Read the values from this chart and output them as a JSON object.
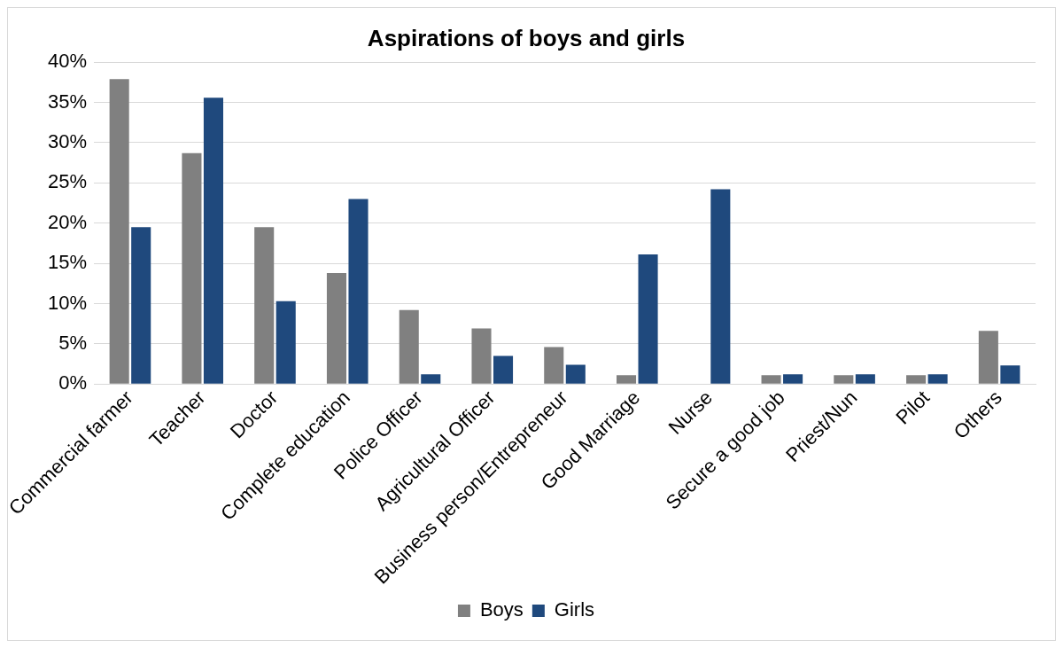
{
  "chart_data": {
    "type": "bar",
    "title": "Aspirations of boys and girls",
    "categories": [
      "Commercial farmer",
      "Teacher",
      "Doctor",
      "Complete education",
      "Police Officer",
      "Agricultural Officer",
      "Business person/Entrepreneur",
      "Good Marriage",
      "Nurse",
      "Secure a good job",
      "Priest/Nun",
      "Pilot",
      "Others"
    ],
    "series": [
      {
        "name": "Boys",
        "color": "#808080",
        "values": [
          37.9,
          28.7,
          19.5,
          13.8,
          9.2,
          6.9,
          4.6,
          1.1,
          0,
          1.1,
          1.1,
          1.1,
          6.6
        ]
      },
      {
        "name": "Girls",
        "color": "#1f497d",
        "values": [
          19.5,
          35.6,
          10.3,
          23,
          1.2,
          3.5,
          2.4,
          16.1,
          24.2,
          1.2,
          1.2,
          1.2,
          2.3
        ]
      }
    ],
    "ylim": [
      0,
      40
    ],
    "yticks": [
      {
        "value": 0,
        "label": "0%"
      },
      {
        "value": 5,
        "label": "5%"
      },
      {
        "value": 10,
        "label": "10%"
      },
      {
        "value": 15,
        "label": "15%"
      },
      {
        "value": 20,
        "label": "20%"
      },
      {
        "value": 25,
        "label": "25%"
      },
      {
        "value": 30,
        "label": "30%"
      },
      {
        "value": 35,
        "label": "35%"
      },
      {
        "value": 40,
        "label": "40%"
      }
    ],
    "grid": "y",
    "legend": "bottom"
  }
}
